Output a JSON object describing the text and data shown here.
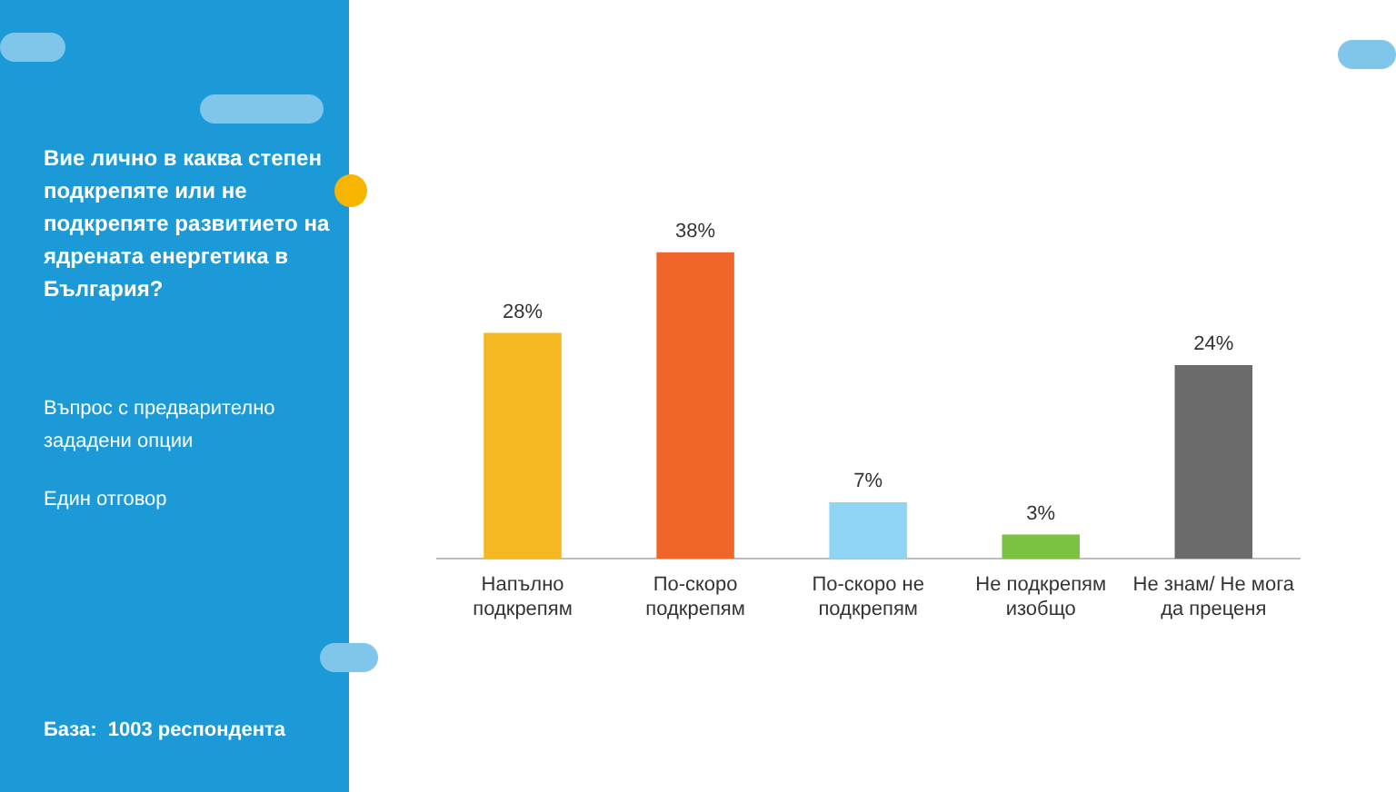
{
  "chart_data": {
    "type": "bar",
    "title": "Вие лично в каква степен подкрепяте или не подкрепяте развитието на ядрената енергетика в България?",
    "annotations": [
      "Въпрос с предварително зададени опции",
      "Един отговор",
      "База:  1003 респондента"
    ],
    "categories": [
      "Напълно подкрепям",
      "По-скоро подкрепям",
      "По-скоро не подкрепям",
      "Не подкрепям изобщо",
      "Не знам/ Не мога да преценя"
    ],
    "values": [
      28,
      38,
      7,
      3,
      24
    ],
    "colors": [
      "#f5b722",
      "#f0652a",
      "#8fd4f5",
      "#7cc242",
      "#6b6b6b"
    ],
    "value_labels": [
      "28%",
      "38%",
      "7%",
      "3%",
      "24%"
    ],
    "legend": false,
    "grid": false
  }
}
